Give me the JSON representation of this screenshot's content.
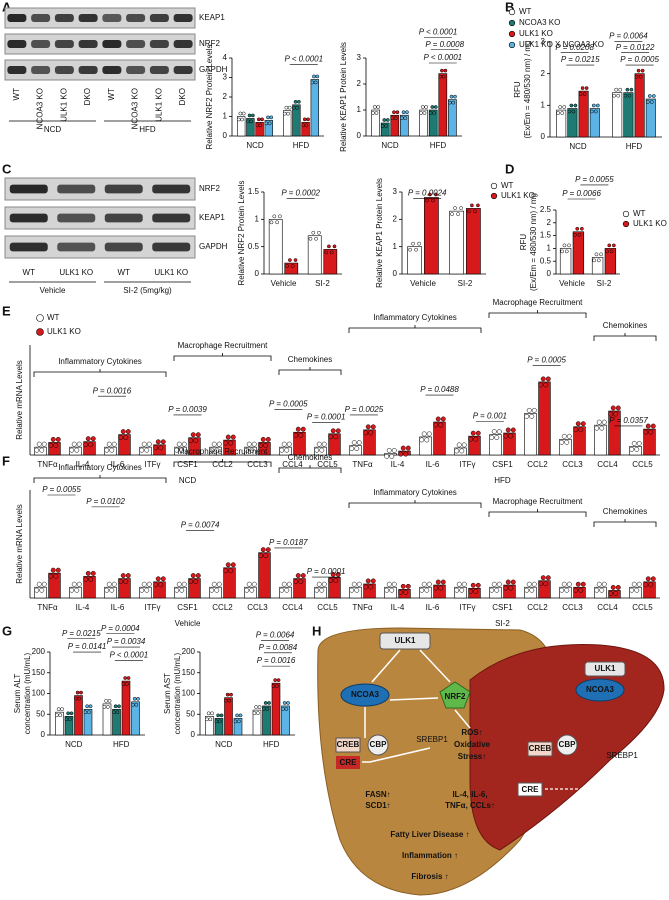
{
  "panel_labels": [
    "A",
    "B",
    "C",
    "D",
    "E",
    "F",
    "G",
    "H"
  ],
  "blots": [
    {
      "bands": [
        "KEAP1",
        "NRF2",
        "GAPDH"
      ],
      "lanes": [
        "WT",
        "NCOA3 KO",
        "ULK1 KO",
        "DKO",
        "WT",
        "NCOA3 KO",
        "ULK1 KO",
        "DKO"
      ],
      "groups": [
        "NCD",
        "HFD"
      ]
    },
    {
      "bands": [
        "NRF2",
        "KEAP1",
        "GAPDH"
      ],
      "lanes": [
        "WT",
        "ULK1 KO",
        "WT",
        "ULK1 KO"
      ],
      "groups": [
        "Vehicle",
        "SI-2 (5mg/kg)"
      ]
    }
  ],
  "chart_data": [
    {
      "type": "bar",
      "ylabel": "Relative NRF2 Protein Levels",
      "categories": [
        "NCD",
        "HFD"
      ],
      "series": [
        {
          "color": "#ffffff",
          "values": [
            1.0,
            1.3
          ]
        },
        {
          "color": "#1e7b73",
          "values": [
            0.9,
            1.6
          ]
        },
        {
          "color": "#d7191c",
          "values": [
            0.7,
            0.7
          ]
        },
        {
          "color": "#5bb4e5",
          "values": [
            0.8,
            2.9
          ]
        }
      ],
      "ylim": [
        0,
        4
      ],
      "yticks": [
        0,
        1,
        2,
        3,
        4
      ],
      "annotations": [
        "P < 0.0001"
      ]
    },
    {
      "type": "bar",
      "ylabel": "Relative KEAP1 Protein Levels",
      "categories": [
        "NCD",
        "HFD"
      ],
      "series": [
        {
          "color": "#ffffff",
          "values": [
            1.0,
            1.0
          ]
        },
        {
          "color": "#1e7b73",
          "values": [
            0.5,
            1.0
          ]
        },
        {
          "color": "#d7191c",
          "values": [
            0.8,
            2.4
          ]
        },
        {
          "color": "#5bb4e5",
          "values": [
            0.8,
            1.4
          ]
        }
      ],
      "ylim": [
        0,
        3
      ],
      "yticks": [
        0,
        1,
        2,
        3
      ],
      "annotations": [
        "P < 0.0001",
        "P = 0.0008",
        "P < 0.0001"
      ]
    },
    {
      "type": "bar",
      "ylabel": [
        "RFU",
        "(Ex/Em = 480/530 nm) / mg"
      ],
      "categories": [
        "NCD",
        "HFD"
      ],
      "legend": true,
      "series": [
        {
          "name": "WT",
          "color": "#ffffff",
          "values": [
            0.85,
            1.4
          ]
        },
        {
          "name": "NCOA3 KO",
          "color": "#1e7b73",
          "values": [
            0.9,
            1.4
          ]
        },
        {
          "name": "ULK1 KO",
          "color": "#d7191c",
          "values": [
            1.45,
            2.0
          ]
        },
        {
          "name": "ULK1 KO X NCOA3 KO",
          "color": "#5bb4e5",
          "values": [
            0.9,
            1.2
          ]
        }
      ],
      "ylim": [
        0,
        3
      ],
      "yticks": [
        0,
        1,
        2,
        3
      ],
      "annotations": [
        "P = 0.0208",
        "P = 0.0215",
        "P = 0.0064",
        "P = 0.0122",
        "P = 0.0005"
      ]
    },
    {
      "type": "bar",
      "ylabel": "Relative NRF2 Protein Levels",
      "categories": [
        "Vehicle",
        "SI-2"
      ],
      "series": [
        {
          "color": "#ffffff",
          "values": [
            1.0,
            0.7
          ]
        },
        {
          "color": "#d7191c",
          "values": [
            0.2,
            0.45
          ]
        }
      ],
      "ylim": [
        0,
        1.5
      ],
      "yticks": [
        0,
        0.5,
        1,
        1.5
      ],
      "annotations": [
        "P = 0.0002"
      ]
    },
    {
      "type": "bar",
      "ylabel": "Relative KEAP1 Protein Levels",
      "categories": [
        "Vehicle",
        "SI-2"
      ],
      "legend": true,
      "series": [
        {
          "name": "WT",
          "color": "#ffffff",
          "values": [
            1.0,
            2.3
          ]
        },
        {
          "name": "ULK1 KO",
          "color": "#d7191c",
          "values": [
            2.8,
            2.4
          ]
        }
      ],
      "ylim": [
        0,
        3
      ],
      "yticks": [
        0,
        1,
        2,
        3
      ],
      "annotations": [
        "P = 0.0024"
      ]
    },
    {
      "type": "bar",
      "ylabel": [
        "RFU",
        "(Ex/Em = 480/530 nm) / mg"
      ],
      "categories": [
        "Vehicle",
        "SI-2"
      ],
      "legend": true,
      "series": [
        {
          "name": "WT",
          "color": "#ffffff",
          "values": [
            1.0,
            0.65
          ]
        },
        {
          "name": "ULK1 KO",
          "color": "#d7191c",
          "values": [
            1.65,
            1.0
          ]
        }
      ],
      "ylim": [
        0,
        2.5
      ],
      "yticks": [
        0,
        0.5,
        1,
        1.5,
        2,
        2.5
      ],
      "annotations": [
        "P = 0.0066",
        "P = 0.0055"
      ]
    },
    {
      "type": "bar",
      "ylabel": "Relative mRNA Levels",
      "legend": true,
      "categories": [
        "TNFα",
        "IL-4",
        "IL-6",
        "ITFγ",
        "CSF1",
        "CCL2",
        "CCL3",
        "CCL4",
        "CCL5",
        "TNFα",
        "IL-4",
        "IL-6",
        "ITFγ",
        "CSF1",
        "CCL2",
        "CCL3",
        "CCL4",
        "CCL5"
      ],
      "group_labels": [
        "NCD",
        "HFD"
      ],
      "brackets": [
        "Inflammatory Cytokines",
        "Macrophage Recruitment",
        "Chemokines",
        "Inflammatory Cytokines",
        "Macrophage Recruitment",
        "Chemokines"
      ],
      "series": [
        {
          "name": "WT",
          "color": "#ffffff",
          "values": [
            1,
            1,
            1,
            1,
            1,
            1,
            1,
            1,
            1,
            1.2,
            0.2,
            2.3,
            0.9,
            2.6,
            5.3,
            2.0,
            3.8,
            1.1
          ]
        },
        {
          "name": "ULK1 KO",
          "color": "#d7191c",
          "values": [
            1.6,
            1.7,
            2.6,
            1.3,
            2.2,
            1.9,
            1.6,
            2.9,
            2.7,
            3.2,
            0.5,
            4.2,
            2.4,
            2.8,
            9.3,
            3.6,
            5.6,
            3.3
          ]
        }
      ],
      "ylim": [
        0,
        14
      ],
      "annotations": [
        "P = 0.0016",
        "P = 0.0039",
        "P = 0.0005",
        "P = 0.0001",
        "P = 0.0025",
        "P = 0.0488",
        "P = 0.001",
        "P = 0.0005",
        "P = 0.0357"
      ]
    },
    {
      "type": "bar",
      "ylabel": "Relative mRNA Levels",
      "categories": [
        "TNFα",
        "IL-4",
        "IL-6",
        "ITFγ",
        "CSF1",
        "CCL2",
        "CCL3",
        "CCL4",
        "CCL5",
        "TNFα",
        "IL-4",
        "IL-6",
        "ITFγ",
        "CSF1",
        "CCL2",
        "CCL3",
        "CCL4",
        "CCL5"
      ],
      "group_labels": [
        "Vehicle",
        "SI-2"
      ],
      "brackets": [
        "Inflammatory Cytokines",
        "Macrophage Recruitment",
        "Chemokines",
        "Inflammatory Cytokines",
        "Macrophage Recruitment",
        "Chemokines"
      ],
      "series": [
        {
          "color": "#ffffff",
          "values": [
            1,
            1,
            1,
            1,
            1,
            1,
            1,
            1,
            1,
            1,
            1,
            1,
            1,
            1,
            1,
            1,
            1,
            1
          ]
        },
        {
          "color": "#d7191c",
          "values": [
            2.3,
            2.0,
            1.8,
            1.5,
            1.8,
            2.8,
            4.2,
            1.8,
            1.9,
            1.3,
            0.8,
            1.2,
            0.9,
            1.2,
            1.6,
            1.0,
            0.7,
            1.5
          ]
        }
      ],
      "ylim": [
        0,
        10
      ],
      "annotations": [
        "P = 0.0055",
        "P = 0.0102",
        "P = 0.0074",
        "P = 0.0187",
        "P = 0.0001"
      ]
    },
    {
      "type": "bar",
      "ylabel": [
        "Serum ALT",
        "concentration (mU/mL)"
      ],
      "categories": [
        "NCD",
        "HFD"
      ],
      "series": [
        {
          "color": "#ffffff",
          "values": [
            55,
            75
          ]
        },
        {
          "color": "#1e7b73",
          "values": [
            45,
            62
          ]
        },
        {
          "color": "#d7191c",
          "values": [
            95,
            130
          ]
        },
        {
          "color": "#5bb4e5",
          "values": [
            62,
            80
          ]
        }
      ],
      "ylim": [
        0,
        200
      ],
      "yticks": [
        0,
        50,
        100,
        150,
        200
      ],
      "annotations": [
        "P = 0.0215",
        "P = 0.0141",
        "P = 0.0004",
        "P < 0.0001",
        "P = 0.0034"
      ]
    },
    {
      "type": "bar",
      "ylabel": [
        "Serum AST",
        "concentration (mU/mL)"
      ],
      "categories": [
        "NCD",
        "HFD"
      ],
      "series": [
        {
          "color": "#ffffff",
          "values": [
            45,
            60
          ]
        },
        {
          "color": "#1e7b73",
          "values": [
            40,
            70
          ]
        },
        {
          "color": "#d7191c",
          "values": [
            90,
            125
          ]
        },
        {
          "color": "#5bb4e5",
          "values": [
            40,
            70
          ]
        }
      ],
      "ylim": [
        0,
        200
      ],
      "yticks": [
        0,
        50,
        100,
        150,
        200
      ],
      "annotations": [
        "P = 0.0064",
        "P = 0.0084",
        "P = 0.0016"
      ]
    }
  ],
  "diagram": {
    "labels": [
      "ULK1",
      "NCOA3",
      "NRF2",
      "CREB",
      "CBP",
      "CRE",
      "SREBP1",
      "ROS↑",
      "Oxidative",
      "Stress↑",
      "FASN↑",
      "SCD1↑",
      "IL-4, IL-6,",
      "TNFα, CCLs↑",
      "Fatty Liver Disease ↑",
      "Inflammation ↑",
      "Fibrosis ↑",
      "ULK1",
      "NCOA3",
      "CREB",
      "CBP",
      "CRE",
      "SREBP1"
    ]
  }
}
